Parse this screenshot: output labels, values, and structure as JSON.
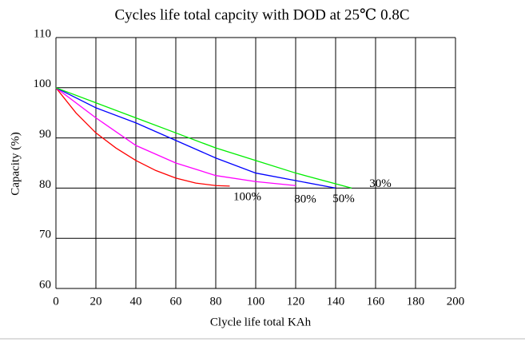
{
  "chart_data": {
    "type": "line",
    "title": "Cycles life total capcity with DOD at 25℃ 0.8C",
    "xlabel": "Clycle life total KAh",
    "ylabel": "Capacity (%)",
    "xlim": [
      0,
      200
    ],
    "xticks": [
      0,
      20,
      40,
      60,
      80,
      100,
      120,
      140,
      160,
      180,
      200
    ],
    "ylim": [
      60,
      110
    ],
    "yticks": [
      60,
      70,
      80,
      90,
      100,
      110
    ],
    "grid": true,
    "series": [
      {
        "name": "100%",
        "color": "#ff0000",
        "x": [
          0,
          10,
          20,
          30,
          40,
          50,
          60,
          70,
          80,
          87
        ],
        "values": [
          100,
          95,
          91,
          88,
          85.5,
          83.5,
          82,
          81,
          80.5,
          80.4
        ]
      },
      {
        "name": "80%",
        "color": "#ff00ff",
        "x": [
          0,
          20,
          40,
          60,
          80,
          100,
          120
        ],
        "values": [
          100,
          94,
          88.5,
          85,
          82.5,
          81.3,
          80.5
        ]
      },
      {
        "name": "50%",
        "color": "#0000ff",
        "x": [
          0,
          20,
          40,
          60,
          80,
          100,
          120,
          140
        ],
        "values": [
          100,
          96,
          93,
          89.5,
          86,
          83,
          81.5,
          80
        ]
      },
      {
        "name": "30%",
        "color": "#00ee00",
        "x": [
          0,
          20,
          40,
          60,
          80,
          100,
          120,
          148
        ],
        "values": [
          100,
          97,
          94,
          91,
          88,
          85.5,
          83,
          80
        ]
      }
    ]
  }
}
